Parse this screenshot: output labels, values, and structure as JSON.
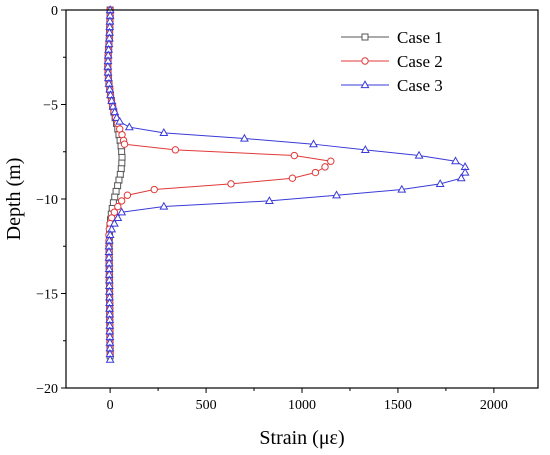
{
  "chart_data": {
    "type": "line",
    "title": "",
    "xlabel": "Strain (με)",
    "ylabel": "Depth (m)",
    "xlim": [
      -230,
      2230
    ],
    "ylim": [
      -20,
      0
    ],
    "xticks": [
      0,
      500,
      1000,
      1500,
      2000
    ],
    "yticks": [
      0,
      -5,
      -10,
      -15,
      -20
    ],
    "legend_position": "top-right",
    "grid": false,
    "series": [
      {
        "name": "Case 1",
        "color": "#555555",
        "marker": "square",
        "depth": [
          0,
          -0.3,
          -0.6,
          -0.9,
          -1.2,
          -1.5,
          -1.8,
          -2.1,
          -2.4,
          -2.7,
          -3.0,
          -3.3,
          -3.6,
          -3.9,
          -4.2,
          -4.5,
          -4.8,
          -5.1,
          -5.4,
          -5.7,
          -6.0,
          -6.3,
          -6.6,
          -6.9,
          -7.2,
          -7.5,
          -7.8,
          -8.1,
          -8.4,
          -8.7,
          -9.0,
          -9.3,
          -9.6,
          -9.9,
          -10.2,
          -10.5,
          -10.8,
          -11.1,
          -11.4,
          -11.7,
          -12.0,
          -12.3,
          -12.6,
          -12.9,
          -13.2,
          -13.5,
          -13.8,
          -14.1,
          -14.4,
          -14.7,
          -15.0,
          -15.3,
          -15.6,
          -15.9,
          -16.2,
          -16.5,
          -16.8,
          -17.1,
          -17.4,
          -17.7,
          -18.0,
          -18.3
        ],
        "strain": [
          0,
          0,
          -1,
          -2,
          -3,
          -4,
          -6,
          -8,
          -10,
          -11,
          -12,
          -11,
          -9,
          -6,
          -2,
          2,
          7,
          13,
          19,
          26,
          33,
          40,
          46,
          52,
          57,
          60,
          62,
          61,
          58,
          53,
          46,
          39,
          31,
          24,
          17,
          11,
          6,
          2,
          -1,
          -3,
          -4,
          -5,
          -5,
          -5,
          -5,
          -5,
          -4,
          -4,
          -4,
          -3,
          -3,
          -3,
          -2,
          -2,
          -2,
          -2,
          -1,
          -1,
          -1,
          -1,
          0,
          0
        ]
      },
      {
        "name": "Case 2",
        "color": "#e03a3a",
        "marker": "circle",
        "depth": [
          0,
          -0.3,
          -0.6,
          -0.9,
          -1.2,
          -1.5,
          -1.8,
          -2.1,
          -2.4,
          -2.7,
          -3.0,
          -3.3,
          -3.6,
          -3.9,
          -4.2,
          -4.5,
          -4.8,
          -5.1,
          -5.4,
          -5.7,
          -6.0,
          -6.3,
          -6.6,
          -6.9,
          -7.1,
          -7.4,
          -7.7,
          -8.0,
          -8.3,
          -8.6,
          -8.9,
          -9.2,
          -9.5,
          -9.8,
          -10.1,
          -10.4,
          -10.7,
          -11.0,
          -11.3,
          -11.6,
          -11.9,
          -12.2,
          -12.5,
          -12.8,
          -13.1,
          -13.4,
          -13.7,
          -14.0,
          -14.3,
          -14.6,
          -14.9,
          -15.2,
          -15.5,
          -15.8,
          -16.1,
          -16.4,
          -16.7,
          -17.0,
          -17.3,
          -17.6,
          -17.9,
          -18.2
        ],
        "strain": [
          0,
          0,
          -1,
          -2,
          -3,
          -4,
          -6,
          -8,
          -10,
          -11,
          -12,
          -11,
          -9,
          -6,
          -2,
          2,
          7,
          13,
          20,
          28,
          38,
          50,
          62,
          70,
          75,
          340,
          960,
          1150,
          1120,
          1070,
          950,
          630,
          230,
          90,
          60,
          40,
          22,
          8,
          0,
          -4,
          -6,
          -6,
          -6,
          -5,
          -5,
          -5,
          -4,
          -4,
          -4,
          -3,
          -3,
          -3,
          -2,
          -2,
          -2,
          -2,
          -1,
          -1,
          -1,
          -1,
          0,
          0
        ]
      },
      {
        "name": "Case 3",
        "color": "#3a3ad8",
        "marker": "triangle",
        "depth": [
          0,
          -0.3,
          -0.6,
          -0.9,
          -1.2,
          -1.5,
          -1.8,
          -2.1,
          -2.4,
          -2.7,
          -3.0,
          -3.3,
          -3.6,
          -3.9,
          -4.2,
          -4.5,
          -4.8,
          -5.1,
          -5.4,
          -5.7,
          -5.9,
          -6.2,
          -6.5,
          -6.8,
          -7.1,
          -7.4,
          -7.7,
          -8.0,
          -8.3,
          -8.6,
          -8.9,
          -9.2,
          -9.5,
          -9.8,
          -10.1,
          -10.4,
          -10.7,
          -11.0,
          -11.3,
          -11.6,
          -11.9,
          -12.2,
          -12.5,
          -12.8,
          -13.1,
          -13.4,
          -13.7,
          -14.0,
          -14.3,
          -14.6,
          -14.9,
          -15.2,
          -15.5,
          -15.8,
          -16.1,
          -16.4,
          -16.7,
          -17.0,
          -17.3,
          -17.6,
          -17.9,
          -18.2,
          -18.5
        ],
        "strain": [
          0,
          0,
          -1,
          -2,
          -3,
          -4,
          -6,
          -8,
          -10,
          -11,
          -12,
          -11,
          -9,
          -6,
          -2,
          2,
          8,
          15,
          24,
          34,
          50,
          100,
          280,
          700,
          1060,
          1330,
          1610,
          1800,
          1850,
          1850,
          1830,
          1720,
          1520,
          1180,
          830,
          280,
          60,
          40,
          22,
          8,
          0,
          -4,
          -6,
          -6,
          -6,
          -5,
          -5,
          -5,
          -4,
          -4,
          -4,
          -3,
          -3,
          -3,
          -2,
          -2,
          -2,
          -2,
          -1,
          -1,
          -1,
          -1,
          0
        ]
      }
    ]
  }
}
